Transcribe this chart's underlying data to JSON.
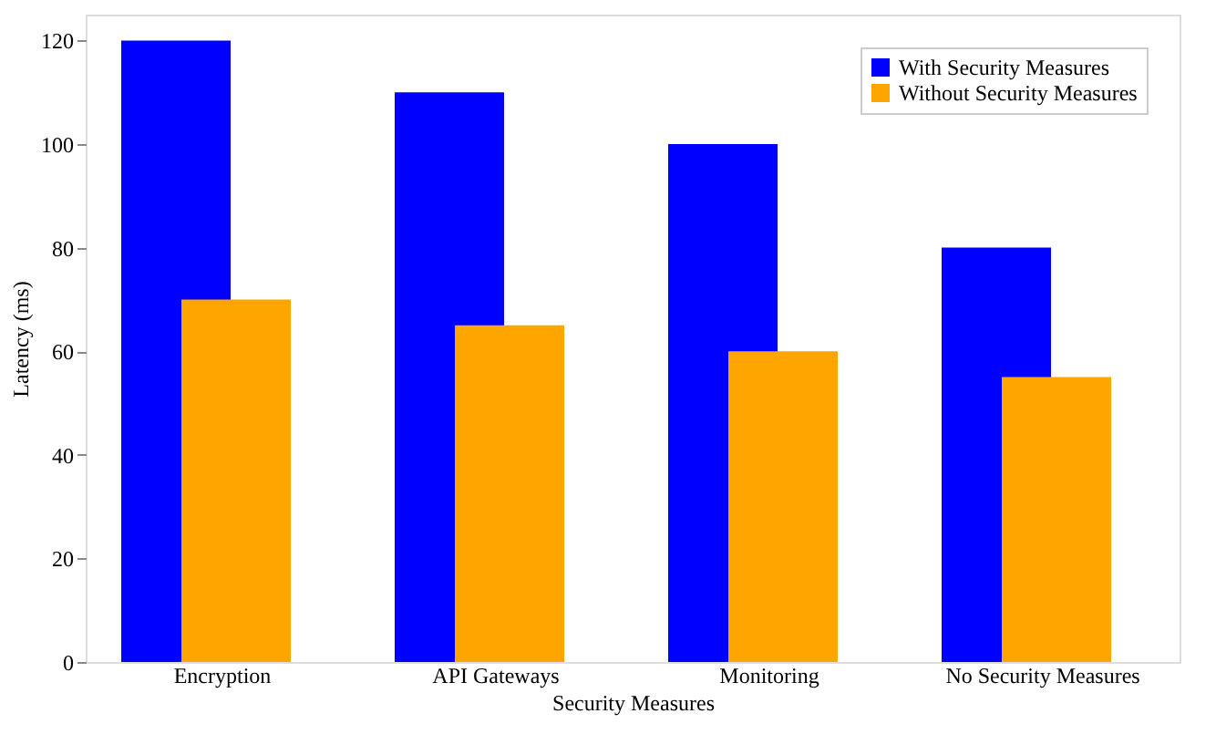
{
  "chart_data": {
    "type": "bar",
    "xlabel": "Security Measures",
    "ylabel": "Latency (ms)",
    "categories": [
      "Encryption",
      "API Gateways",
      "Monitoring",
      "No Security Measures"
    ],
    "series": [
      {
        "name": "With Security Measures",
        "color": "#0000ff",
        "values": [
          120,
          110,
          100,
          80
        ]
      },
      {
        "name": "Without Security Measures",
        "color": "#ffa500",
        "values": [
          70,
          65,
          60,
          55
        ]
      }
    ],
    "ylim": [
      0,
      125
    ],
    "yticks": [
      0,
      20,
      40,
      60,
      80,
      100,
      120
    ],
    "grid": false,
    "legend": "top right"
  }
}
